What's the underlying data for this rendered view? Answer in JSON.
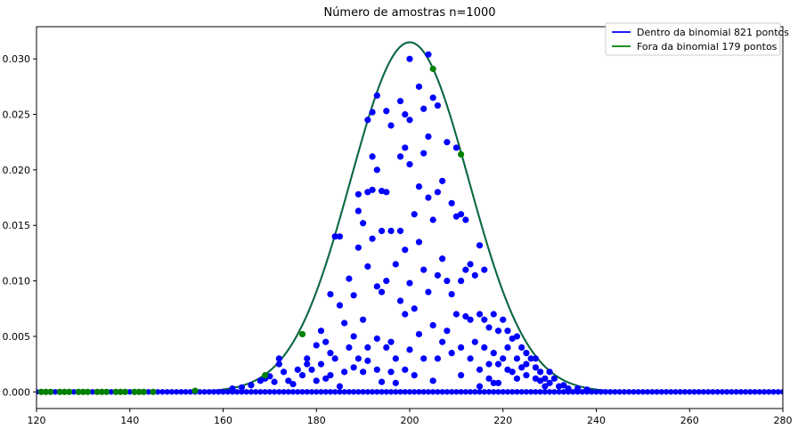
{
  "chart_data": {
    "type": "scatter",
    "title": "Número de amostras n=1000",
    "xlabel": "",
    "ylabel": "",
    "xlim": [
      120,
      280
    ],
    "ylim": [
      -0.0015,
      0.0329
    ],
    "xticks": [
      "120",
      "140",
      "160",
      "180",
      "200",
      "220",
      "240",
      "260",
      "280"
    ],
    "yticks": [
      "0.000",
      "0.005",
      "0.010",
      "0.015",
      "0.020",
      "0.025",
      "0.030"
    ],
    "grid": false,
    "legend_position": "top-right",
    "curve": {
      "distribution": "binomial-normal-approx",
      "mean": 200,
      "peak": 0.0315,
      "std": 12.65
    },
    "series": [
      {
        "name": "Dentro da binomial 821 pontos",
        "kind": "line",
        "color": "#0000ff",
        "points": [
          [
            175,
            0.0007
          ],
          [
            177,
            0.0015
          ],
          [
            178,
            0.0025
          ],
          [
            180,
            0.0042
          ],
          [
            181,
            0.0055
          ],
          [
            181,
            0.0025
          ],
          [
            182,
            0.0012
          ],
          [
            183,
            0.0088
          ],
          [
            183,
            0.0035
          ],
          [
            184,
            0.014
          ],
          [
            185,
            0.014
          ],
          [
            185,
            0.0078
          ],
          [
            185,
            0.0005
          ],
          [
            186,
            0.0062
          ],
          [
            187,
            0.0102
          ],
          [
            188,
            0.0087
          ],
          [
            188,
            0.005
          ],
          [
            188,
            0.0022
          ],
          [
            189,
            0.0163
          ],
          [
            189,
            0.0178
          ],
          [
            189,
            0.013
          ],
          [
            190,
            0.0152
          ],
          [
            190,
            0.0065
          ],
          [
            191,
            0.0245
          ],
          [
            191,
            0.018
          ],
          [
            191,
            0.0113
          ],
          [
            191,
            0.0028
          ],
          [
            192,
            0.0252
          ],
          [
            192,
            0.0212
          ],
          [
            192,
            0.0182
          ],
          [
            192,
            0.0138
          ],
          [
            193,
            0.0267
          ],
          [
            193,
            0.02
          ],
          [
            193,
            0.0095
          ],
          [
            193,
            0.0048
          ],
          [
            194,
            0.0181
          ],
          [
            194,
            0.0145
          ],
          [
            194,
            0.009
          ],
          [
            194,
            0.0009
          ],
          [
            195,
            0.0253
          ],
          [
            195,
            0.018
          ],
          [
            195,
            0.01
          ],
          [
            196,
            0.024
          ],
          [
            196,
            0.0145
          ],
          [
            196,
            0.0045
          ],
          [
            197,
            0.0115
          ],
          [
            197,
            0.003
          ],
          [
            198,
            0.0262
          ],
          [
            198,
            0.0212
          ],
          [
            198,
            0.0145
          ],
          [
            198,
            0.0082
          ],
          [
            199,
            0.025
          ],
          [
            199,
            0.022
          ],
          [
            199,
            0.0128
          ],
          [
            199,
            0.007
          ],
          [
            200,
            0.03
          ],
          [
            200,
            0.0245
          ],
          [
            200,
            0.0205
          ],
          [
            200,
            0.0098
          ],
          [
            200,
            0.0038
          ],
          [
            201,
            0.016
          ],
          [
            201,
            0.0075
          ],
          [
            202,
            0.0275
          ],
          [
            202,
            0.0185
          ],
          [
            202,
            0.0135
          ],
          [
            202,
            0.0052
          ],
          [
            203,
            0.0255
          ],
          [
            203,
            0.0215
          ],
          [
            203,
            0.011
          ],
          [
            204,
            0.0304
          ],
          [
            204,
            0.023
          ],
          [
            204,
            0.0175
          ],
          [
            204,
            0.009
          ],
          [
            205,
            0.0265
          ],
          [
            205,
            0.0155
          ],
          [
            205,
            0.006
          ],
          [
            206,
            0.0258
          ],
          [
            206,
            0.018
          ],
          [
            206,
            0.0105
          ],
          [
            206,
            0.003
          ],
          [
            207,
            0.019
          ],
          [
            207,
            0.012
          ],
          [
            208,
            0.0225
          ],
          [
            208,
            0.01
          ],
          [
            208,
            0.0055
          ],
          [
            209,
            0.017
          ],
          [
            209,
            0.0088
          ],
          [
            210,
            0.022
          ],
          [
            210,
            0.0158
          ],
          [
            210,
            0.007
          ],
          [
            211,
            0.016
          ],
          [
            211,
            0.01
          ],
          [
            211,
            0.004
          ],
          [
            212,
            0.0155
          ],
          [
            212,
            0.011
          ],
          [
            212,
            0.0068
          ],
          [
            213,
            0.0115
          ],
          [
            213,
            0.0065
          ],
          [
            214,
            0.0105
          ],
          [
            214,
            0.0045
          ],
          [
            215,
            0.0132
          ],
          [
            215,
            0.007
          ],
          [
            215,
            0.0005
          ],
          [
            216,
            0.011
          ],
          [
            216,
            0.0065
          ],
          [
            216,
            0.004
          ],
          [
            217,
            0.0058
          ],
          [
            217,
            0.0025
          ],
          [
            218,
            0.007
          ],
          [
            218,
            0.0035
          ],
          [
            218,
            0.0008
          ],
          [
            219,
            0.0055
          ],
          [
            219,
            0.0025
          ],
          [
            220,
            0.0065
          ],
          [
            220,
            0.003
          ],
          [
            221,
            0.0055
          ],
          [
            221,
            0.002
          ],
          [
            222,
            0.0048
          ],
          [
            222,
            0.0018
          ],
          [
            223,
            0.005
          ],
          [
            223,
            0.003
          ],
          [
            224,
            0.004
          ],
          [
            224,
            0.0022
          ],
          [
            225,
            0.0035
          ],
          [
            225,
            0.0015
          ],
          [
            226,
            0.003
          ],
          [
            227,
            0.0022
          ],
          [
            227,
            0.0012
          ],
          [
            228,
            0.0018
          ],
          [
            229,
            0.0012
          ],
          [
            230,
            0.0008
          ],
          [
            232,
            0.0005
          ],
          [
            234,
            0.0003
          ],
          [
            172,
            0.0025
          ],
          [
            172,
            0.003
          ],
          [
            173,
            0.0018
          ],
          [
            174,
            0.001
          ],
          [
            176,
            0.002
          ],
          [
            178,
            0.003
          ],
          [
            179,
            0.002
          ],
          [
            180,
            0.001
          ],
          [
            182,
            0.0045
          ],
          [
            183,
            0.0015
          ],
          [
            184,
            0.003
          ],
          [
            186,
            0.0018
          ],
          [
            187,
            0.004
          ],
          [
            189,
            0.003
          ],
          [
            190,
            0.0018
          ],
          [
            191,
            0.004
          ],
          [
            193,
            0.002
          ],
          [
            195,
            0.004
          ],
          [
            196,
            0.0018
          ],
          [
            197,
            0.0008
          ],
          [
            199,
            0.002
          ],
          [
            201,
            0.0015
          ],
          [
            203,
            0.003
          ],
          [
            205,
            0.001
          ],
          [
            207,
            0.0045
          ],
          [
            209,
            0.0035
          ],
          [
            211,
            0.0015
          ],
          [
            213,
            0.003
          ],
          [
            215,
            0.002
          ],
          [
            217,
            0.0012
          ],
          [
            219,
            0.0008
          ],
          [
            221,
            0.004
          ],
          [
            223,
            0.0012
          ],
          [
            225,
            0.0025
          ],
          [
            227,
            0.003
          ],
          [
            228,
            0.001
          ],
          [
            229,
            0.0005
          ],
          [
            230,
            0.0018
          ],
          [
            231,
            0.0012
          ],
          [
            233,
            0.0006
          ],
          [
            236,
            0.0003
          ],
          [
            238,
            0.0002
          ],
          [
            168,
            0.001
          ],
          [
            169,
            0.0012
          ],
          [
            170,
            0.0014
          ],
          [
            171,
            0.0009
          ],
          [
            166,
            0.0006
          ],
          [
            164,
            0.0004
          ],
          [
            162,
            0.0003
          ]
        ]
      },
      {
        "name": "Fora da binomial 179 pontos",
        "kind": "line",
        "color": "#008000",
        "points": [
          [
            177,
            0.0052
          ],
          [
            205,
            0.0291
          ],
          [
            211,
            0.0214
          ],
          [
            169,
            0.0015
          ],
          [
            154,
            0.0001
          ],
          [
            121,
            0.0
          ],
          [
            123,
            0.0
          ],
          [
            125,
            0.0
          ],
          [
            127,
            0.0
          ],
          [
            129,
            0.0
          ],
          [
            131,
            0.0
          ],
          [
            133,
            0.0
          ],
          [
            135,
            0.0
          ],
          [
            137,
            0.0
          ],
          [
            139,
            0.0
          ],
          [
            141,
            0.0
          ],
          [
            143,
            0.0
          ],
          [
            145,
            0.0
          ],
          [
            122,
            0.0
          ],
          [
            126,
            0.0
          ],
          [
            130,
            0.0
          ],
          [
            134,
            0.0
          ],
          [
            138,
            0.0
          ],
          [
            142,
            0.0
          ]
        ]
      }
    ],
    "baseline_points": {
      "color": "#0000ff",
      "y": 0.0,
      "x_start": 120,
      "x_end": 280,
      "step": 1
    }
  }
}
